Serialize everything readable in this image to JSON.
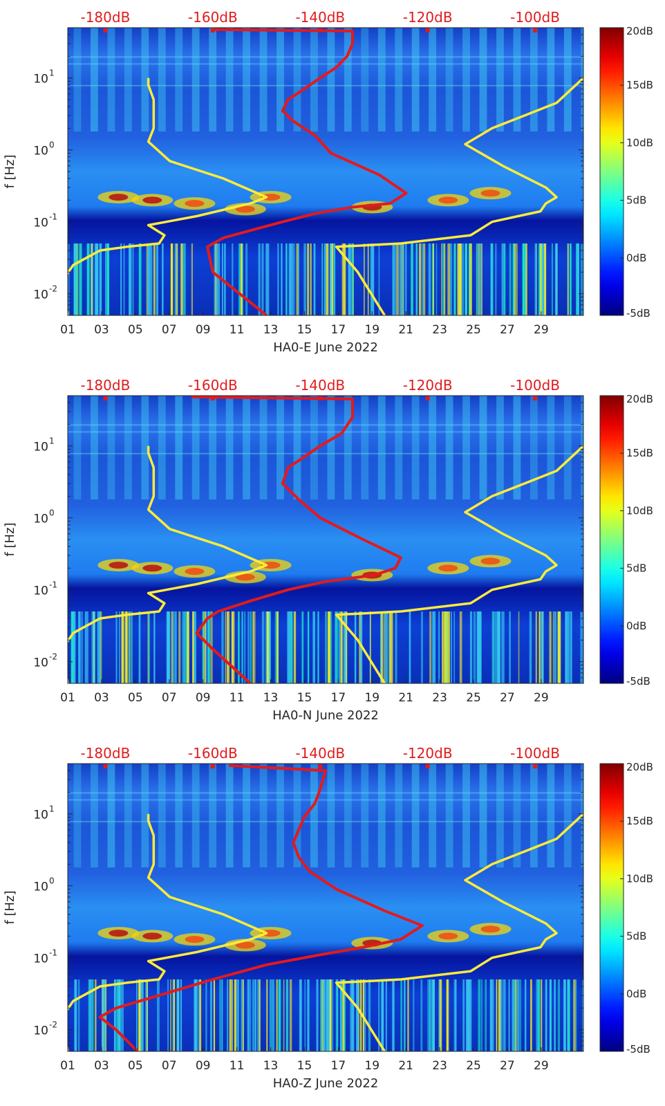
{
  "chart_data": [
    {
      "type": "heatmap",
      "title": "",
      "xlabel": "HA0-E June 2022",
      "ylabel": "f [Hz]",
      "y_scale": "log",
      "ylim": [
        0.005,
        50
      ],
      "xlim": [
        1,
        31.5
      ],
      "x_ticks": [
        "01",
        "03",
        "05",
        "07",
        "09",
        "11",
        "13",
        "15",
        "17",
        "19",
        "21",
        "23",
        "25",
        "27",
        "29"
      ],
      "y_ticks": [
        {
          "value": 10,
          "base": "10",
          "exp": "1"
        },
        {
          "value": 1,
          "base": "10",
          "exp": "0"
        },
        {
          "value": 0.1,
          "base": "10",
          "exp": "-1"
        },
        {
          "value": 0.01,
          "base": "10",
          "exp": "-2"
        }
      ],
      "top_axis": {
        "labels": [
          "-180dB",
          "-160dB",
          "-140dB",
          "-120dB",
          "-100dB"
        ],
        "range": [
          -187,
          -91
        ],
        "color": "#e31a1c"
      },
      "colorbar": {
        "range": [
          -5,
          20
        ],
        "labels": [
          "20dB",
          "15dB",
          "10dB",
          "5dB",
          "0dB",
          "-5dB"
        ],
        "colormap": "jet"
      },
      "series": [
        {
          "color": "#e31a1c",
          "points": [
            [
              -150,
              0.005
            ],
            [
              -155,
              0.01
            ],
            [
              -160,
              0.02
            ],
            [
              -161,
              0.045
            ],
            [
              -158,
              0.06
            ],
            [
              -147,
              0.1
            ],
            [
              -141,
              0.13
            ],
            [
              -134,
              0.16
            ],
            [
              -127,
              0.18
            ],
            [
              -124,
              0.25
            ],
            [
              -129,
              0.45
            ],
            [
              -138,
              0.9
            ],
            [
              -141,
              1.6
            ],
            [
              -145,
              2.5
            ],
            [
              -147,
              3.5
            ],
            [
              -146,
              5
            ],
            [
              -143,
              7
            ],
            [
              -140,
              10
            ],
            [
              -137,
              14
            ],
            [
              -135,
              20
            ],
            [
              -134,
              30
            ],
            [
              -134,
              45
            ],
            [
              -160,
              47
            ]
          ]
        },
        {
          "color": "#ffeb3b",
          "points": [
            [
              -187,
              0.005
            ],
            [
              -188,
              0.015
            ],
            [
              -186,
              0.025
            ],
            [
              -181,
              0.04
            ],
            [
              -176,
              0.045
            ],
            [
              -170,
              0.05
            ],
            [
              -169,
              0.065
            ],
            [
              -172,
              0.09
            ],
            [
              -163,
              0.12
            ],
            [
              -153,
              0.18
            ],
            [
              -150,
              0.22
            ],
            [
              -158,
              0.4
            ],
            [
              -168,
              0.7
            ],
            [
              -172,
              1.3
            ],
            [
              -171,
              2
            ],
            [
              -171,
              3
            ],
            [
              -171,
              5
            ],
            [
              -172,
              8
            ],
            [
              -172,
              10
            ]
          ]
        },
        {
          "color": "#ffeb3b",
          "points": [
            [
              -128,
              0.005
            ],
            [
              -133,
              0.02
            ],
            [
              -137,
              0.045
            ],
            [
              -125,
              0.05
            ],
            [
              -112,
              0.065
            ],
            [
              -108,
              0.1
            ],
            [
              -99,
              0.14
            ],
            [
              -98,
              0.18
            ],
            [
              -96,
              0.22
            ],
            [
              -98,
              0.3
            ],
            [
              -106,
              0.6
            ],
            [
              -113,
              1.2
            ],
            [
              -108,
              2
            ],
            [
              -102,
              3
            ],
            [
              -96,
              4.5
            ],
            [
              -91,
              10
            ]
          ]
        }
      ]
    },
    {
      "type": "heatmap",
      "title": "",
      "xlabel": "HA0-N June 2022",
      "ylabel": "f [Hz]",
      "y_scale": "log",
      "ylim": [
        0.005,
        50
      ],
      "xlim": [
        1,
        31.5
      ],
      "x_ticks": [
        "01",
        "03",
        "05",
        "07",
        "09",
        "11",
        "13",
        "15",
        "17",
        "19",
        "21",
        "23",
        "25",
        "27",
        "29"
      ],
      "y_ticks": [
        {
          "value": 10,
          "base": "10",
          "exp": "1"
        },
        {
          "value": 1,
          "base": "10",
          "exp": "0"
        },
        {
          "value": 0.1,
          "base": "10",
          "exp": "-1"
        },
        {
          "value": 0.01,
          "base": "10",
          "exp": "-2"
        }
      ],
      "top_axis": {
        "labels": [
          "-180dB",
          "-160dB",
          "-140dB",
          "-120dB",
          "-100dB"
        ],
        "range": [
          -187,
          -91
        ],
        "color": "#e31a1c"
      },
      "colorbar": {
        "range": [
          -5,
          20
        ],
        "labels": [
          "20dB",
          "15dB",
          "10dB",
          "5dB",
          "0dB",
          "-5dB"
        ],
        "colormap": "jet"
      },
      "series": [
        {
          "color": "#e31a1c",
          "points": [
            [
              -153,
              0.005
            ],
            [
              -160,
              0.015
            ],
            [
              -163,
              0.025
            ],
            [
              -161,
              0.04
            ],
            [
              -159,
              0.05
            ],
            [
              -153,
              0.07
            ],
            [
              -146,
              0.1
            ],
            [
              -139,
              0.13
            ],
            [
              -130,
              0.16
            ],
            [
              -126,
              0.2
            ],
            [
              -125,
              0.28
            ],
            [
              -132,
              0.5
            ],
            [
              -140,
              1
            ],
            [
              -144,
              1.8
            ],
            [
              -147,
              3
            ],
            [
              -146,
              5
            ],
            [
              -143,
              7
            ],
            [
              -140,
              10
            ],
            [
              -136,
              15
            ],
            [
              -134,
              25
            ],
            [
              -134,
              45
            ],
            [
              -164,
              48
            ]
          ]
        },
        {
          "color": "#ffeb3b",
          "points": [
            [
              -187,
              0.005
            ],
            [
              -188,
              0.015
            ],
            [
              -186,
              0.025
            ],
            [
              -181,
              0.04
            ],
            [
              -176,
              0.045
            ],
            [
              -170,
              0.05
            ],
            [
              -169,
              0.065
            ],
            [
              -172,
              0.09
            ],
            [
              -163,
              0.12
            ],
            [
              -153,
              0.18
            ],
            [
              -150,
              0.22
            ],
            [
              -158,
              0.4
            ],
            [
              -168,
              0.7
            ],
            [
              -172,
              1.3
            ],
            [
              -171,
              2
            ],
            [
              -171,
              3
            ],
            [
              -171,
              5
            ],
            [
              -172,
              8
            ],
            [
              -172,
              10
            ]
          ]
        },
        {
          "color": "#ffeb3b",
          "points": [
            [
              -128,
              0.005
            ],
            [
              -133,
              0.02
            ],
            [
              -137,
              0.045
            ],
            [
              -125,
              0.05
            ],
            [
              -112,
              0.065
            ],
            [
              -108,
              0.1
            ],
            [
              -99,
              0.14
            ],
            [
              -98,
              0.18
            ],
            [
              -96,
              0.22
            ],
            [
              -98,
              0.3
            ],
            [
              -106,
              0.6
            ],
            [
              -113,
              1.2
            ],
            [
              -108,
              2
            ],
            [
              -102,
              3
            ],
            [
              -96,
              4.5
            ],
            [
              -91,
              10
            ]
          ]
        }
      ]
    },
    {
      "type": "heatmap",
      "title": "",
      "xlabel": "HA0-Z June 2022",
      "ylabel": "f [Hz]",
      "y_scale": "log",
      "ylim": [
        0.005,
        50
      ],
      "xlim": [
        1,
        31.5
      ],
      "x_ticks": [
        "01",
        "03",
        "05",
        "07",
        "09",
        "11",
        "13",
        "15",
        "17",
        "19",
        "21",
        "23",
        "25",
        "27",
        "29"
      ],
      "y_ticks": [
        {
          "value": 10,
          "base": "10",
          "exp": "1"
        },
        {
          "value": 1,
          "base": "10",
          "exp": "0"
        },
        {
          "value": 0.1,
          "base": "10",
          "exp": "-1"
        },
        {
          "value": 0.01,
          "base": "10",
          "exp": "-2"
        }
      ],
      "top_axis": {
        "labels": [
          "-180dB",
          "-160dB",
          "-140dB",
          "-120dB",
          "-100dB"
        ],
        "range": [
          -187,
          -91
        ],
        "color": "#e31a1c"
      },
      "colorbar": {
        "range": [
          -5,
          20
        ],
        "labels": [
          "20dB",
          "15dB",
          "10dB",
          "5dB",
          "0dB",
          "-5dB"
        ],
        "colormap": "jet"
      },
      "series": [
        {
          "color": "#e31a1c",
          "points": [
            [
              -174,
              0.005
            ],
            [
              -178,
              0.01
            ],
            [
              -181,
              0.015
            ],
            [
              -178,
              0.02
            ],
            [
              -170,
              0.03
            ],
            [
              -160,
              0.05
            ],
            [
              -150,
              0.08
            ],
            [
              -140,
              0.11
            ],
            [
              -132,
              0.14
            ],
            [
              -125,
              0.18
            ],
            [
              -121,
              0.28
            ],
            [
              -128,
              0.45
            ],
            [
              -137,
              0.9
            ],
            [
              -142,
              1.6
            ],
            [
              -144,
              2.5
            ],
            [
              -145,
              4
            ],
            [
              -144,
              6
            ],
            [
              -143,
              9
            ],
            [
              -141,
              14
            ],
            [
              -140,
              22
            ],
            [
              -139,
              40
            ],
            [
              -157,
              47
            ]
          ]
        },
        {
          "color": "#ffeb3b",
          "points": [
            [
              -187,
              0.005
            ],
            [
              -188,
              0.015
            ],
            [
              -186,
              0.025
            ],
            [
              -181,
              0.04
            ],
            [
              -176,
              0.045
            ],
            [
              -170,
              0.05
            ],
            [
              -169,
              0.065
            ],
            [
              -172,
              0.09
            ],
            [
              -163,
              0.12
            ],
            [
              -153,
              0.18
            ],
            [
              -150,
              0.22
            ],
            [
              -158,
              0.4
            ],
            [
              -168,
              0.7
            ],
            [
              -172,
              1.3
            ],
            [
              -171,
              2
            ],
            [
              -171,
              3
            ],
            [
              -171,
              5
            ],
            [
              -172,
              8
            ],
            [
              -172,
              10
            ]
          ]
        },
        {
          "color": "#ffeb3b",
          "points": [
            [
              -128,
              0.005
            ],
            [
              -133,
              0.02
            ],
            [
              -137,
              0.045
            ],
            [
              -125,
              0.05
            ],
            [
              -112,
              0.065
            ],
            [
              -108,
              0.1
            ],
            [
              -99,
              0.14
            ],
            [
              -98,
              0.18
            ],
            [
              -96,
              0.22
            ],
            [
              -98,
              0.3
            ],
            [
              -106,
              0.6
            ],
            [
              -113,
              1.2
            ],
            [
              -108,
              2
            ],
            [
              -102,
              3
            ],
            [
              -96,
              4.5
            ],
            [
              -91,
              10
            ]
          ]
        }
      ]
    }
  ]
}
